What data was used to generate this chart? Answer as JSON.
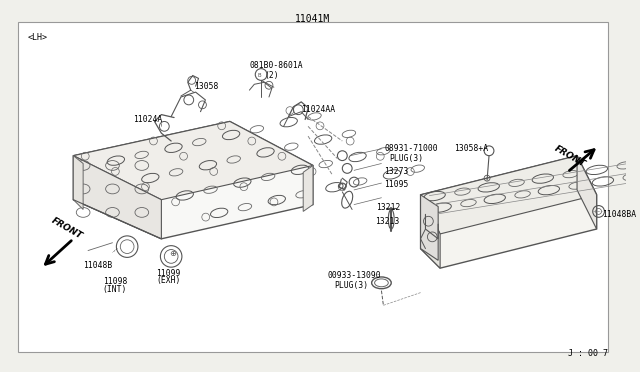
{
  "bg_color": "#f0f0eb",
  "white": "#ffffff",
  "border_color": "#888888",
  "line_color": "#444444",
  "title_top": "11041M",
  "label_LH": "<LH>",
  "footer": "J : 00 7",
  "fig_w": 6.4,
  "fig_h": 3.72,
  "dpi": 100
}
